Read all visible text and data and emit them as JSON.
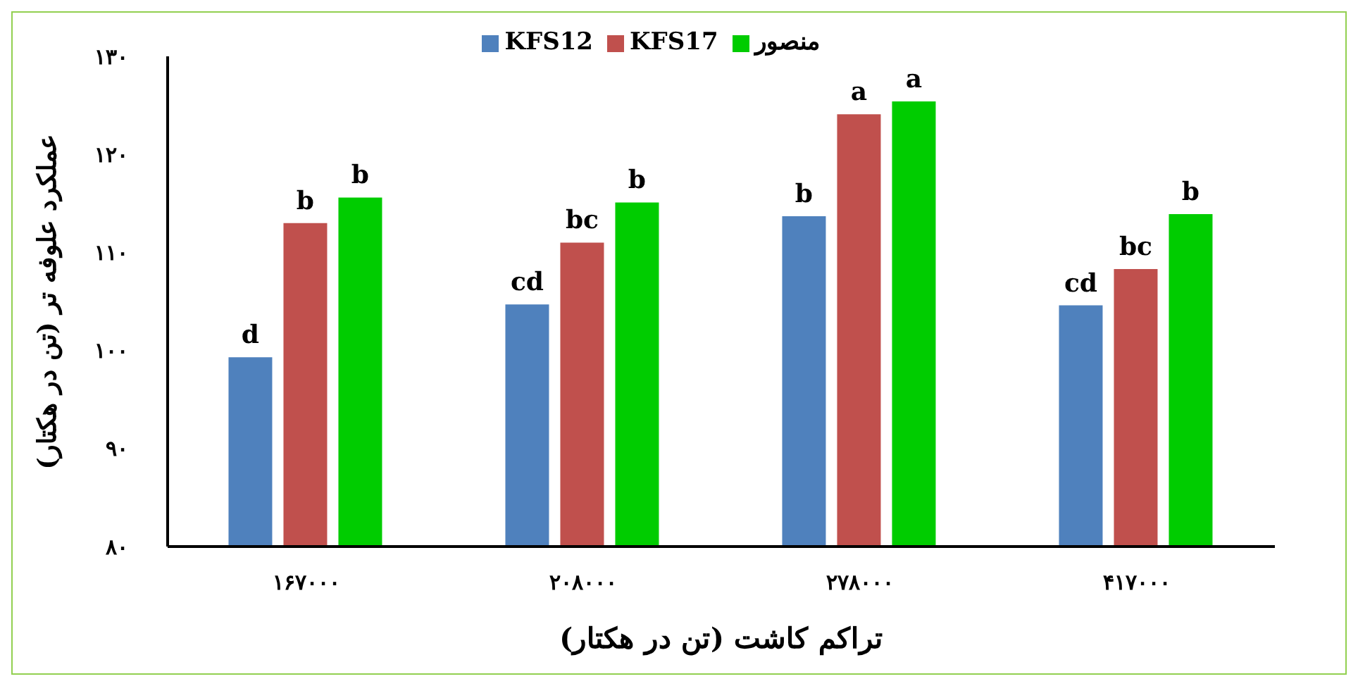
{
  "chart_data": {
    "type": "bar",
    "xlabel": "تراکم کاشت (تن در هکتار)",
    "ylabel": "عملکرد علوفه تر (تن در هکتار)",
    "categories": [
      "۱۶۷۰۰۰",
      "۲۰۸۰۰۰",
      "۲۷۸۰۰۰",
      "۴۱۷۰۰۰"
    ],
    "series": [
      {
        "name": "KFS12",
        "color": "#4f81bd",
        "values": [
          99.3,
          104.7,
          113.7,
          104.6
        ],
        "value_labels": [
          "d",
          "cd",
          "b",
          "cd"
        ]
      },
      {
        "name": "KFS17",
        "color": "#c0504d",
        "values": [
          113,
          111,
          124.1,
          108.3
        ],
        "value_labels": [
          "b",
          "bc",
          "a",
          "bc"
        ]
      },
      {
        "name": "منصور",
        "color": "#00cc00",
        "values": [
          115.6,
          115.1,
          125.4,
          113.9
        ],
        "value_labels": [
          "b",
          "b",
          "a",
          "b"
        ]
      }
    ],
    "ylim": [
      80,
      130
    ],
    "yticks": [
      {
        "value": 80,
        "label": "۸۰"
      },
      {
        "value": 90,
        "label": "۹۰"
      },
      {
        "value": 100,
        "label": "۱۰۰"
      },
      {
        "value": 110,
        "label": "۱۱۰"
      },
      {
        "value": 120,
        "label": "۱۲۰"
      },
      {
        "value": 130,
        "label": "۱۳۰"
      }
    ],
    "grid": false,
    "legend": "top"
  }
}
